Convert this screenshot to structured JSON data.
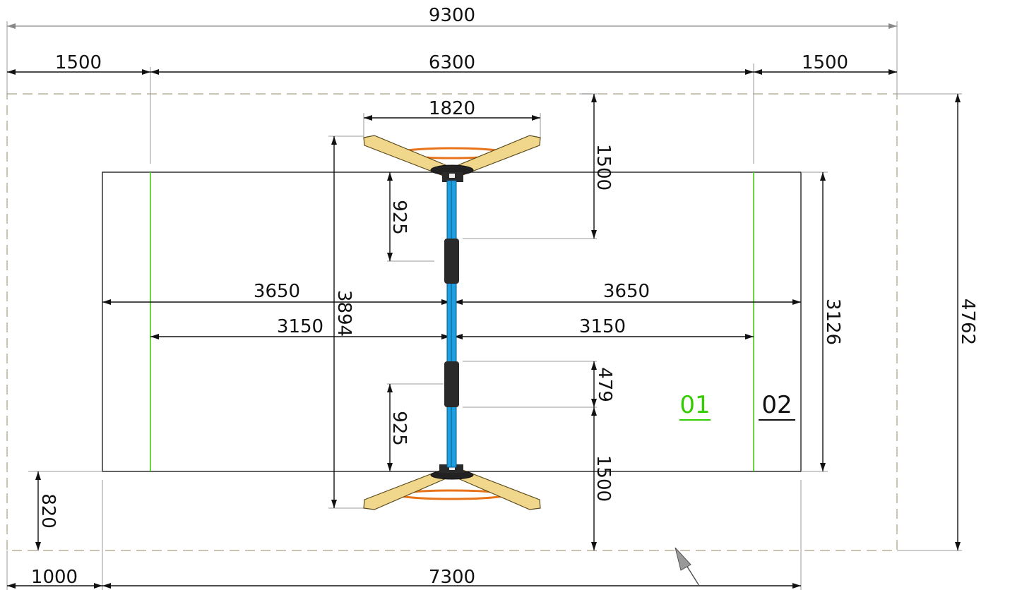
{
  "dimensions": {
    "overall_width": "9300",
    "left_margin": "1500",
    "inner_width": "6300",
    "right_margin": "1500",
    "base_span": "1820",
    "top_clearance": "1500",
    "post_spacing_top": "925",
    "half_court_left": "3650",
    "half_court_right": "3650",
    "total_depth": "3894",
    "inner_half_left": "3150",
    "inner_half_right": "3150",
    "court_height": "3126",
    "overall_height": "4762",
    "post_gap": "479",
    "post_spacing_bottom": "925",
    "bottom_clearance": "1500",
    "bottom_offset": "820",
    "bottom_left_margin": "1000",
    "court_width": "7300"
  },
  "labels": {
    "zone_01": "01",
    "zone_02": "02"
  },
  "colors": {
    "line": "#111111",
    "zone_green": "#33cc00",
    "dashed_boundary": "#b8b09a",
    "net_blue": "#1e9fe0",
    "frame_yellow": "#f0d78c",
    "ring_orange": "#e8731a"
  }
}
